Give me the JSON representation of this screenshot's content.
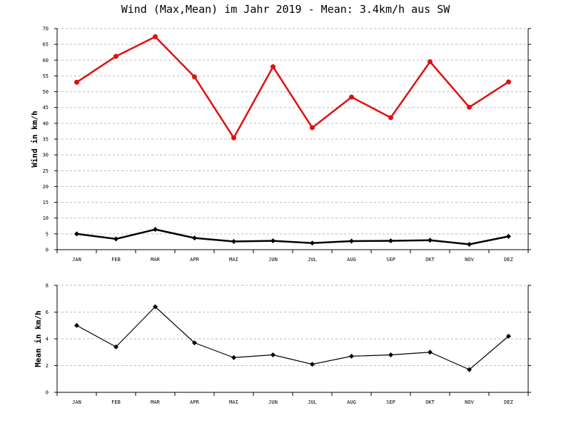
{
  "title": "Wind (Max,Mean) im Jahr 2019 - Mean: 3.4km/h aus SW",
  "chart_data": [
    {
      "type": "line",
      "categories": [
        "JAN",
        "FEB",
        "MAR",
        "APR",
        "MAI",
        "JUN",
        "JUL",
        "AUG",
        "SEP",
        "OKT",
        "NOV",
        "DEZ"
      ],
      "ylabel": "Wind in km/h",
      "ylim": [
        0,
        70
      ],
      "yticks": [
        0,
        5,
        10,
        15,
        20,
        25,
        30,
        35,
        40,
        45,
        50,
        55,
        60,
        65,
        70
      ],
      "grid": true,
      "series": [
        {
          "color": "#e01010",
          "marker": "circle",
          "values": [
            53.0,
            61.2,
            67.4,
            54.7,
            35.4,
            57.9,
            38.6,
            48.3,
            41.8,
            59.5,
            45.1,
            53.1
          ]
        },
        {
          "color": "#000000",
          "marker": "diamond",
          "values": [
            5.0,
            3.4,
            6.4,
            3.7,
            2.6,
            2.8,
            2.1,
            2.7,
            2.8,
            3.0,
            1.7,
            4.2
          ]
        }
      ]
    },
    {
      "type": "line",
      "categories": [
        "JAN",
        "FEB",
        "MAR",
        "APR",
        "MAI",
        "JUN",
        "JUL",
        "AUG",
        "SEP",
        "OKT",
        "NOV",
        "DEZ"
      ],
      "ylabel": "Mean in km/h",
      "ylim": [
        0,
        8
      ],
      "yticks": [
        0,
        2,
        4,
        6,
        8
      ],
      "grid": true,
      "series": [
        {
          "color": "#000000",
          "marker": "diamond",
          "values": [
            5.0,
            3.4,
            6.4,
            3.7,
            2.6,
            2.8,
            2.1,
            2.7,
            2.8,
            3.0,
            1.7,
            4.2
          ]
        }
      ]
    }
  ]
}
